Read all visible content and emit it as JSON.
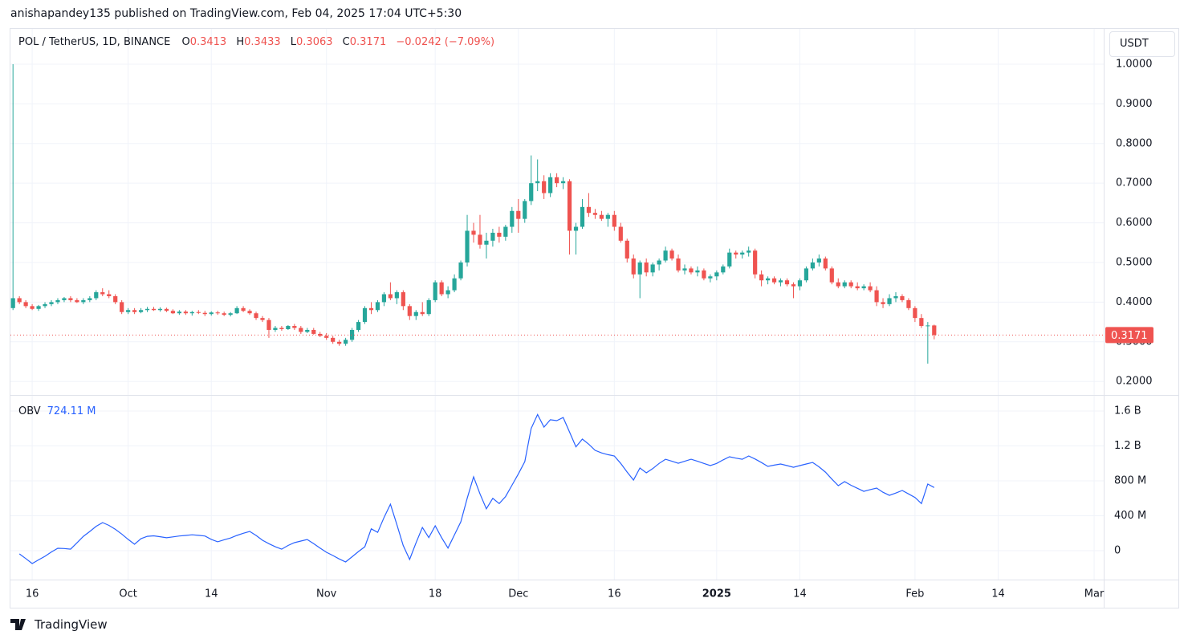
{
  "header": {
    "published": "anishapandey135 published on TradingView.com, Feb 04, 2025 17:04 UTC+5:30"
  },
  "footer": {
    "brand": "TradingView"
  },
  "chart_data": [
    {
      "type": "candlestick",
      "title": "POL / TetherUS, 1D, BINANCE",
      "ohlc_labels": [
        "O",
        "H",
        "L",
        "C"
      ],
      "change": {
        "value": -0.0242,
        "label": "−0.0242"
      },
      "change_pct": {
        "value": -7.09,
        "label": "(−7.09%)"
      },
      "currency": "USDT",
      "up_color": "#26a69a",
      "down_color": "#ef5350",
      "grid": true,
      "xlim": [
        -0.4,
        170.5
      ],
      "ylim": [
        0.166,
        1.089
      ],
      "yticks": [
        {
          "value": 0.2,
          "label": "0.2000"
        },
        {
          "value": 0.3,
          "label": "0.3000"
        },
        {
          "value": 0.4,
          "label": "0.4000"
        },
        {
          "value": 0.5,
          "label": "0.5000"
        },
        {
          "value": 0.6,
          "label": "0.6000"
        },
        {
          "value": 0.7,
          "label": "0.7000"
        },
        {
          "value": 0.8,
          "label": "0.8000"
        },
        {
          "value": 0.9,
          "label": "0.9000"
        },
        {
          "value": 1,
          "label": "1.0000"
        }
      ],
      "ohlc": [
        [
          0.385,
          1.0,
          0.38,
          0.41
        ],
        [
          0.41,
          0.415,
          0.395,
          0.4
        ],
        [
          0.4,
          0.405,
          0.385,
          0.39
        ],
        [
          0.39,
          0.395,
          0.38,
          0.383
        ],
        [
          0.383,
          0.393,
          0.378,
          0.39
        ],
        [
          0.39,
          0.4,
          0.385,
          0.395
        ],
        [
          0.395,
          0.405,
          0.39,
          0.4
        ],
        [
          0.4,
          0.41,
          0.395,
          0.405
        ],
        [
          0.405,
          0.413,
          0.4,
          0.41
        ],
        [
          0.41,
          0.415,
          0.4,
          0.405
        ],
        [
          0.405,
          0.41,
          0.398,
          0.4
        ],
        [
          0.4,
          0.41,
          0.395,
          0.405
        ],
        [
          0.405,
          0.415,
          0.4,
          0.41
        ],
        [
          0.41,
          0.43,
          0.405,
          0.425
        ],
        [
          0.425,
          0.435,
          0.415,
          0.42
        ],
        [
          0.42,
          0.43,
          0.41,
          0.415
        ],
        [
          0.415,
          0.42,
          0.395,
          0.4
        ],
        [
          0.4,
          0.405,
          0.37,
          0.375
        ],
        [
          0.375,
          0.385,
          0.37,
          0.38
        ],
        [
          0.38,
          0.385,
          0.37,
          0.375
        ],
        [
          0.375,
          0.385,
          0.372,
          0.38
        ],
        [
          0.38,
          0.388,
          0.375,
          0.383
        ],
        [
          0.383,
          0.388,
          0.378,
          0.38
        ],
        [
          0.38,
          0.387,
          0.376,
          0.383
        ],
        [
          0.383,
          0.386,
          0.375,
          0.378
        ],
        [
          0.378,
          0.382,
          0.37,
          0.372
        ],
        [
          0.372,
          0.38,
          0.368,
          0.376
        ],
        [
          0.376,
          0.38,
          0.368,
          0.372
        ],
        [
          0.372,
          0.378,
          0.366,
          0.375
        ],
        [
          0.375,
          0.38,
          0.37,
          0.373
        ],
        [
          0.373,
          0.378,
          0.365,
          0.37
        ],
        [
          0.37,
          0.377,
          0.366,
          0.374
        ],
        [
          0.374,
          0.378,
          0.368,
          0.372
        ],
        [
          0.372,
          0.376,
          0.365,
          0.368
        ],
        [
          0.368,
          0.375,
          0.364,
          0.372
        ],
        [
          0.372,
          0.39,
          0.37,
          0.385
        ],
        [
          0.385,
          0.39,
          0.375,
          0.378
        ],
        [
          0.378,
          0.382,
          0.368,
          0.372
        ],
        [
          0.372,
          0.376,
          0.355,
          0.36
        ],
        [
          0.36,
          0.365,
          0.35,
          0.355
        ],
        [
          0.355,
          0.36,
          0.31,
          0.33
        ],
        [
          0.33,
          0.34,
          0.325,
          0.335
        ],
        [
          0.335,
          0.34,
          0.328,
          0.332
        ],
        [
          0.332,
          0.342,
          0.33,
          0.34
        ],
        [
          0.34,
          0.345,
          0.33,
          0.335
        ],
        [
          0.335,
          0.34,
          0.32,
          0.325
        ],
        [
          0.325,
          0.335,
          0.322,
          0.33
        ],
        [
          0.33,
          0.335,
          0.318,
          0.32
        ],
        [
          0.32,
          0.325,
          0.312,
          0.315
        ],
        [
          0.315,
          0.322,
          0.305,
          0.31
        ],
        [
          0.31,
          0.315,
          0.295,
          0.3
        ],
        [
          0.3,
          0.305,
          0.29,
          0.295
        ],
        [
          0.295,
          0.31,
          0.29,
          0.305
        ],
        [
          0.305,
          0.335,
          0.3,
          0.33
        ],
        [
          0.33,
          0.355,
          0.325,
          0.35
        ],
        [
          0.35,
          0.39,
          0.345,
          0.385
        ],
        [
          0.385,
          0.4,
          0.37,
          0.38
        ],
        [
          0.38,
          0.405,
          0.375,
          0.4
        ],
        [
          0.4,
          0.425,
          0.39,
          0.42
        ],
        [
          0.42,
          0.45,
          0.405,
          0.41
        ],
        [
          0.41,
          0.43,
          0.395,
          0.425
        ],
        [
          0.425,
          0.43,
          0.38,
          0.39
        ],
        [
          0.39,
          0.395,
          0.355,
          0.365
        ],
        [
          0.365,
          0.38,
          0.355,
          0.375
        ],
        [
          0.375,
          0.4,
          0.365,
          0.37
        ],
        [
          0.37,
          0.41,
          0.365,
          0.405
        ],
        [
          0.405,
          0.455,
          0.4,
          0.45
        ],
        [
          0.45,
          0.455,
          0.415,
          0.42
        ],
        [
          0.42,
          0.44,
          0.41,
          0.43
        ],
        [
          0.43,
          0.47,
          0.425,
          0.46
        ],
        [
          0.46,
          0.505,
          0.455,
          0.5
        ],
        [
          0.5,
          0.62,
          0.49,
          0.58
        ],
        [
          0.58,
          0.6,
          0.55,
          0.57
        ],
        [
          0.57,
          0.62,
          0.535,
          0.545
        ],
        [
          0.545,
          0.575,
          0.51,
          0.555
        ],
        [
          0.555,
          0.585,
          0.54,
          0.575
        ],
        [
          0.575,
          0.59,
          0.55,
          0.565
        ],
        [
          0.565,
          0.595,
          0.555,
          0.59
        ],
        [
          0.59,
          0.64,
          0.575,
          0.63
        ],
        [
          0.63,
          0.66,
          0.575,
          0.61
        ],
        [
          0.61,
          0.66,
          0.6,
          0.655
        ],
        [
          0.655,
          0.77,
          0.645,
          0.7
        ],
        [
          0.7,
          0.76,
          0.68,
          0.705
        ],
        [
          0.705,
          0.72,
          0.66,
          0.675
        ],
        [
          0.675,
          0.725,
          0.665,
          0.715
        ],
        [
          0.715,
          0.725,
          0.69,
          0.7
        ],
        [
          0.7,
          0.715,
          0.685,
          0.705
        ],
        [
          0.705,
          0.71,
          0.52,
          0.58
        ],
        [
          0.58,
          0.6,
          0.52,
          0.59
        ],
        [
          0.59,
          0.66,
          0.585,
          0.64
        ],
        [
          0.64,
          0.675,
          0.615,
          0.625
        ],
        [
          0.625,
          0.635,
          0.61,
          0.62
        ],
        [
          0.62,
          0.63,
          0.605,
          0.61
        ],
        [
          0.61,
          0.625,
          0.59,
          0.62
        ],
        [
          0.62,
          0.63,
          0.58,
          0.59
        ],
        [
          0.59,
          0.6,
          0.55,
          0.555
        ],
        [
          0.555,
          0.56,
          0.5,
          0.51
        ],
        [
          0.51,
          0.52,
          0.46,
          0.47
        ],
        [
          0.47,
          0.505,
          0.41,
          0.5
        ],
        [
          0.5,
          0.51,
          0.465,
          0.475
        ],
        [
          0.475,
          0.5,
          0.465,
          0.495
        ],
        [
          0.495,
          0.51,
          0.48,
          0.505
        ],
        [
          0.505,
          0.54,
          0.5,
          0.53
        ],
        [
          0.53,
          0.535,
          0.505,
          0.51
        ],
        [
          0.51,
          0.52,
          0.475,
          0.48
        ],
        [
          0.48,
          0.495,
          0.47,
          0.485
        ],
        [
          0.485,
          0.49,
          0.47,
          0.475
        ],
        [
          0.475,
          0.49,
          0.465,
          0.48
        ],
        [
          0.48,
          0.485,
          0.455,
          0.46
        ],
        [
          0.46,
          0.47,
          0.45,
          0.465
        ],
        [
          0.465,
          0.48,
          0.455,
          0.475
        ],
        [
          0.475,
          0.495,
          0.47,
          0.49
        ],
        [
          0.49,
          0.535,
          0.485,
          0.525
        ],
        [
          0.525,
          0.53,
          0.51,
          0.52
        ],
        [
          0.52,
          0.53,
          0.51,
          0.525
        ],
        [
          0.525,
          0.54,
          0.515,
          0.53
        ],
        [
          0.53,
          0.535,
          0.46,
          0.47
        ],
        [
          0.47,
          0.48,
          0.44,
          0.455
        ],
        [
          0.455,
          0.465,
          0.445,
          0.46
        ],
        [
          0.46,
          0.465,
          0.445,
          0.45
        ],
        [
          0.45,
          0.46,
          0.44,
          0.455
        ],
        [
          0.455,
          0.46,
          0.44,
          0.445
        ],
        [
          0.445,
          0.45,
          0.41,
          0.44
        ],
        [
          0.44,
          0.46,
          0.43,
          0.455
        ],
        [
          0.455,
          0.49,
          0.45,
          0.485
        ],
        [
          0.485,
          0.51,
          0.48,
          0.5
        ],
        [
          0.5,
          0.52,
          0.49,
          0.51
        ],
        [
          0.51,
          0.515,
          0.48,
          0.485
        ],
        [
          0.485,
          0.49,
          0.445,
          0.45
        ],
        [
          0.45,
          0.46,
          0.435,
          0.44
        ],
        [
          0.44,
          0.455,
          0.435,
          0.45
        ],
        [
          0.45,
          0.455,
          0.435,
          0.44
        ],
        [
          0.44,
          0.45,
          0.43,
          0.435
        ],
        [
          0.435,
          0.445,
          0.43,
          0.44
        ],
        [
          0.44,
          0.45,
          0.425,
          0.43
        ],
        [
          0.43,
          0.44,
          0.39,
          0.4
        ],
        [
          0.4,
          0.41,
          0.385,
          0.395
        ],
        [
          0.395,
          0.42,
          0.39,
          0.41
        ],
        [
          0.41,
          0.425,
          0.4,
          0.415
        ],
        [
          0.415,
          0.42,
          0.4,
          0.405
        ],
        [
          0.405,
          0.41,
          0.38,
          0.385
        ],
        [
          0.385,
          0.39,
          0.35,
          0.36
        ],
        [
          0.36,
          0.37,
          0.335,
          0.34
        ],
        [
          0.34,
          0.35,
          0.245,
          0.3413
        ],
        [
          0.3413,
          0.3433,
          0.3063,
          0.3171
        ]
      ]
    },
    {
      "type": "line",
      "name": "OBV",
      "color": "#2962ff",
      "legend_value_label": "724.11 M",
      "grid": true,
      "xlim": [
        -0.4,
        170.5
      ],
      "ylim": [
        -331,
        1775
      ],
      "yticks": [
        0,
        {
          "value": 400,
          "label": "400 M"
        },
        {
          "value": 800,
          "label": "800 M"
        },
        {
          "value": 1200,
          "label": "1.2 B"
        },
        {
          "value": 1600,
          "label": "1.6 B"
        }
      ],
      "xticks": [
        {
          "value": 3,
          "label": "16"
        },
        {
          "value": 18,
          "label": "Oct"
        },
        {
          "value": 31,
          "label": "14"
        },
        {
          "value": 49,
          "label": "Nov"
        },
        {
          "value": 66,
          "label": "18"
        },
        {
          "value": 79,
          "label": "Dec"
        },
        {
          "value": 94,
          "label": "16"
        },
        {
          "value": 110,
          "label": "2025",
          "bold": true
        },
        {
          "value": 123,
          "label": "14"
        },
        {
          "value": 141,
          "label": "Feb"
        },
        {
          "value": 154,
          "label": "14"
        },
        {
          "value": 169,
          "label": "Mar"
        }
      ],
      "values": [
        null,
        -37,
        -90,
        -147,
        -105,
        -64,
        -15,
        28,
        25,
        18,
        90,
        165,
        220,
        280,
        322,
        290,
        245,
        190,
        130,
        74,
        138,
        165,
        170,
        160,
        148,
        158,
        168,
        175,
        182,
        176,
        168,
        130,
        102,
        125,
        145,
        175,
        200,
        221,
        175,
        120,
        80,
        45,
        18,
        60,
        92,
        110,
        128,
        80,
        30,
        -18,
        -55,
        -95,
        -129,
        -70,
        -10,
        45,
        250,
        210,
        380,
        533,
        300,
        60,
        -100,
        90,
        267,
        150,
        285,
        150,
        30,
        180,
        331,
        600,
        846,
        650,
        480,
        600,
        540,
        620,
        750,
        880,
        1021,
        1400,
        1560,
        1416,
        1500,
        1490,
        1526,
        1360,
        1190,
        1278,
        1220,
        1150,
        1120,
        1100,
        1085,
        1000,
        900,
        809,
        947,
        892,
        940,
        1000,
        1048,
        1025,
        1002,
        1025,
        1048,
        1025,
        1000,
        975,
        1000,
        1040,
        1076,
        1060,
        1048,
        1085,
        1050,
        1010,
        966,
        980,
        993,
        975,
        956,
        975,
        993,
        1011,
        960,
        900,
        820,
        745,
        791,
        750,
        715,
        680,
        700,
        717,
        670,
        634,
        660,
        690,
        650,
        610,
        540,
        763,
        724.11
      ]
    }
  ]
}
